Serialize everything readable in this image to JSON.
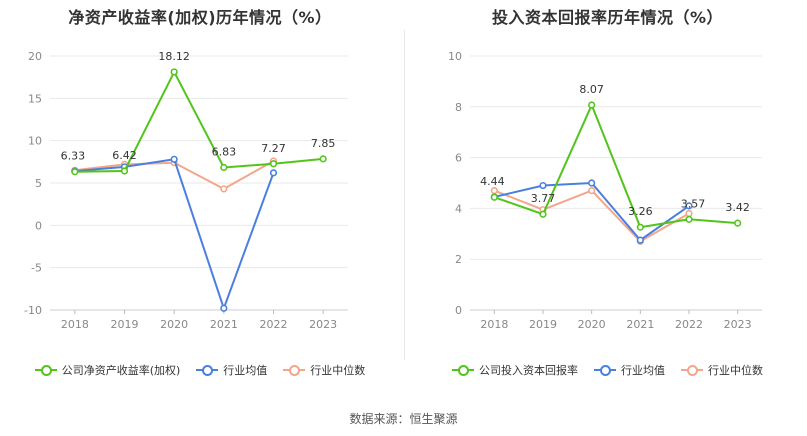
{
  "source": "数据来源：恒生聚源",
  "colors": {
    "company": "#52c41a",
    "industry_avg": "#4a7fe0",
    "industry_median": "#f4a58a"
  },
  "chart_data": [
    {
      "type": "line",
      "title": "净资产收益率(加权)历年情况（%）",
      "x": [
        "2018",
        "2019",
        "2020",
        "2021",
        "2022",
        "2023"
      ],
      "ylim": [
        -10,
        20
      ],
      "yticks": [
        -10,
        -5,
        0,
        5,
        10,
        15,
        20
      ],
      "grid": true,
      "legend_position": "bottom",
      "series": [
        {
          "name": "公司净资产收益率(加权)",
          "key": "company",
          "values": [
            6.33,
            6.42,
            18.12,
            6.83,
            7.27,
            7.85
          ],
          "labels": [
            "6.33",
            "6.42",
            "18.12",
            "6.83",
            "7.27",
            "7.85"
          ]
        },
        {
          "name": "行业均值",
          "key": "industry_avg",
          "values": [
            6.4,
            6.9,
            7.8,
            -9.8,
            6.2,
            null
          ]
        },
        {
          "name": "行业中位数",
          "key": "industry_median",
          "values": [
            6.5,
            7.2,
            7.4,
            4.3,
            7.6,
            null
          ]
        }
      ]
    },
    {
      "type": "line",
      "title": "投入资本回报率历年情况（%）",
      "x": [
        "2018",
        "2019",
        "2020",
        "2021",
        "2022",
        "2023"
      ],
      "ylim": [
        0,
        10
      ],
      "yticks": [
        0,
        2,
        4,
        6,
        8,
        10
      ],
      "grid": true,
      "legend_position": "bottom",
      "series": [
        {
          "name": "公司投入资本回报率",
          "key": "company",
          "values": [
            4.44,
            3.77,
            8.07,
            3.26,
            3.57,
            3.42
          ],
          "labels": [
            "4.44",
            "3.77",
            "8.07",
            "3.26",
            "3.57",
            "3.42"
          ]
        },
        {
          "name": "行业均值",
          "key": "industry_avg",
          "values": [
            4.45,
            4.9,
            5.0,
            2.75,
            4.1,
            null
          ]
        },
        {
          "name": "行业中位数",
          "key": "industry_median",
          "values": [
            4.7,
            3.95,
            4.7,
            2.7,
            3.8,
            null
          ]
        }
      ]
    }
  ]
}
